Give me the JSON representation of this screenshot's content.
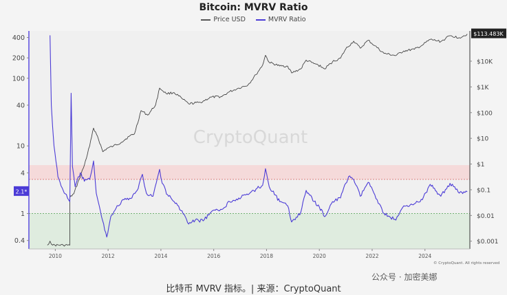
{
  "header": {
    "title": "Bitcoin: MVRV Ratio",
    "legend": [
      {
        "label": "Price USD",
        "color": "#555555"
      },
      {
        "label": "MVRV Ratio",
        "color": "#4b3bd6"
      }
    ]
  },
  "watermark": "CryptoQuant",
  "copyright": "© CryptoQuant. All rights reserved",
  "social_overlay": "公众号 · 加密美娜",
  "caption": "比特币 MVRV 指标。| 来源：CryptoQuant",
  "chart_data": {
    "type": "line",
    "title": "Bitcoin: MVRV Ratio",
    "x_ticks": [
      "2010",
      "2012",
      "2014",
      "2016",
      "2018",
      "2020",
      "2022",
      "2024"
    ],
    "xlim": [
      2009.0,
      2025.7
    ],
    "left_axis": {
      "scale": "log",
      "ticks": [
        "0.4",
        "1",
        "4",
        "10",
        "40",
        "100",
        "200",
        "400"
      ],
      "ylim": [
        0.3,
        500
      ]
    },
    "right_axis": {
      "scale": "log",
      "ticks": [
        "$0.001",
        "$0.01",
        "$0.1",
        "$1",
        "$10",
        "$100",
        "$1K",
        "$10K"
      ],
      "ylim": [
        0.0005,
        150000
      ]
    },
    "current_value_label": "2.1*",
    "current_price_label": "$113.483K",
    "bands": [
      {
        "name": "overvalued",
        "from": 3.2,
        "to": 5.2,
        "color": "#f6d6d6"
      },
      {
        "name": "undervalued",
        "from": 0.3,
        "to": 1.0,
        "color": "#dcebdc"
      }
    ],
    "series": [
      {
        "name": "Price USD",
        "axis": "right",
        "color": "#444444",
        "points": [
          [
            2009.7,
            0.0007
          ],
          [
            2009.8,
            0.001
          ],
          [
            2009.9,
            0.0007
          ],
          [
            2010.3,
            0.0007
          ],
          [
            2010.55,
            0.0007
          ],
          [
            2010.55,
            0.05
          ],
          [
            2010.7,
            0.07
          ],
          [
            2010.9,
            0.25
          ],
          [
            2011.1,
            0.9
          ],
          [
            2011.3,
            5
          ],
          [
            2011.45,
            25
          ],
          [
            2011.6,
            12
          ],
          [
            2011.8,
            3
          ],
          [
            2011.95,
            4
          ],
          [
            2012.2,
            5
          ],
          [
            2012.5,
            7
          ],
          [
            2012.8,
            12
          ],
          [
            2013.0,
            15
          ],
          [
            2013.25,
            120
          ],
          [
            2013.5,
            80
          ],
          [
            2013.8,
            200
          ],
          [
            2013.95,
            900
          ],
          [
            2014.2,
            550
          ],
          [
            2014.5,
            600
          ],
          [
            2014.8,
            350
          ],
          [
            2015.05,
            220
          ],
          [
            2015.5,
            250
          ],
          [
            2015.9,
            400
          ],
          [
            2016.3,
            420
          ],
          [
            2016.6,
            650
          ],
          [
            2016.95,
            900
          ],
          [
            2017.3,
            1200
          ],
          [
            2017.6,
            3000
          ],
          [
            2017.85,
            7000
          ],
          [
            2017.96,
            17000
          ],
          [
            2018.1,
            9000
          ],
          [
            2018.5,
            6500
          ],
          [
            2018.8,
            6400
          ],
          [
            2018.95,
            3500
          ],
          [
            2019.3,
            5000
          ],
          [
            2019.5,
            11000
          ],
          [
            2019.8,
            8000
          ],
          [
            2019.95,
            7200
          ],
          [
            2020.2,
            5000
          ],
          [
            2020.5,
            9500
          ],
          [
            2020.8,
            13000
          ],
          [
            2021.0,
            30000
          ],
          [
            2021.3,
            60000
          ],
          [
            2021.55,
            32000
          ],
          [
            2021.85,
            65000
          ],
          [
            2022.1,
            40000
          ],
          [
            2022.45,
            20000
          ],
          [
            2022.9,
            16500
          ],
          [
            2023.2,
            25000
          ],
          [
            2023.6,
            29000
          ],
          [
            2023.9,
            42000
          ],
          [
            2024.2,
            70000
          ],
          [
            2024.6,
            58000
          ],
          [
            2024.95,
            98000
          ],
          [
            2025.3,
            82000
          ],
          [
            2025.6,
            113483
          ]
        ]
      },
      {
        "name": "MVRV Ratio",
        "axis": "left",
        "color": "#4b3bd6",
        "points": [
          [
            2009.8,
            430
          ],
          [
            2009.85,
            40
          ],
          [
            2009.95,
            10
          ],
          [
            2010.1,
            3.5
          ],
          [
            2010.3,
            2.2
          ],
          [
            2010.5,
            1.6
          ],
          [
            2010.55,
            1.5
          ],
          [
            2010.6,
            60
          ],
          [
            2010.65,
            5
          ],
          [
            2010.75,
            2.5
          ],
          [
            2010.95,
            4
          ],
          [
            2011.1,
            3
          ],
          [
            2011.3,
            3.2
          ],
          [
            2011.45,
            6
          ],
          [
            2011.55,
            2
          ],
          [
            2011.75,
            0.9
          ],
          [
            2011.95,
            0.45
          ],
          [
            2012.1,
            0.9
          ],
          [
            2012.3,
            1.2
          ],
          [
            2012.6,
            1.6
          ],
          [
            2012.9,
            1.7
          ],
          [
            2013.1,
            2.2
          ],
          [
            2013.3,
            3.8
          ],
          [
            2013.45,
            2.0
          ],
          [
            2013.7,
            1.8
          ],
          [
            2013.95,
            4.5
          ],
          [
            2014.05,
            2.8
          ],
          [
            2014.25,
            1.9
          ],
          [
            2014.5,
            1.5
          ],
          [
            2014.8,
            1.1
          ],
          [
            2015.05,
            0.7
          ],
          [
            2015.3,
            0.8
          ],
          [
            2015.6,
            0.78
          ],
          [
            2015.9,
            1.05
          ],
          [
            2016.3,
            1.15
          ],
          [
            2016.6,
            1.5
          ],
          [
            2016.95,
            1.7
          ],
          [
            2017.3,
            1.9
          ],
          [
            2017.6,
            2.3
          ],
          [
            2017.85,
            2.6
          ],
          [
            2017.96,
            4.6
          ],
          [
            2018.1,
            2.5
          ],
          [
            2018.5,
            1.5
          ],
          [
            2018.8,
            1.3
          ],
          [
            2018.95,
            0.75
          ],
          [
            2019.3,
            1.05
          ],
          [
            2019.5,
            2.2
          ],
          [
            2019.8,
            1.5
          ],
          [
            2020.0,
            1.25
          ],
          [
            2020.2,
            0.9
          ],
          [
            2020.5,
            1.5
          ],
          [
            2020.8,
            1.7
          ],
          [
            2021.0,
            2.8
          ],
          [
            2021.15,
            3.6
          ],
          [
            2021.3,
            3.2
          ],
          [
            2021.55,
            1.8
          ],
          [
            2021.85,
            2.9
          ],
          [
            2022.1,
            1.9
          ],
          [
            2022.45,
            1.0
          ],
          [
            2022.9,
            0.8
          ],
          [
            2023.2,
            1.3
          ],
          [
            2023.6,
            1.4
          ],
          [
            2023.9,
            1.6
          ],
          [
            2024.2,
            2.7
          ],
          [
            2024.6,
            1.8
          ],
          [
            2024.95,
            2.8
          ],
          [
            2025.3,
            2.0
          ],
          [
            2025.6,
            2.1
          ]
        ]
      }
    ]
  }
}
